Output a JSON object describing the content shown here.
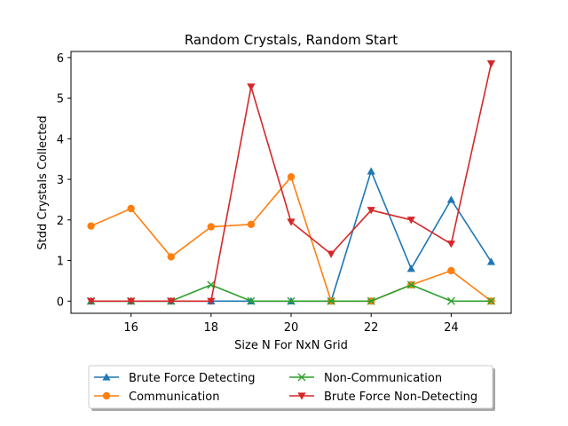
{
  "chart_data": {
    "type": "line",
    "title": "Random Crystals, Random Start",
    "xlabel": "Size N For NxN Grid",
    "ylabel": "Stdd Crystals Collected",
    "x": [
      15,
      16,
      17,
      18,
      19,
      20,
      21,
      22,
      23,
      24,
      25
    ],
    "xlim": [
      14.5,
      25.5
    ],
    "ylim": [
      -0.3,
      6.15
    ],
    "xticks": [
      16,
      18,
      20,
      22,
      24
    ],
    "yticks": [
      0,
      1,
      2,
      3,
      4,
      5,
      6
    ],
    "grid": false,
    "legend_placement": "below-center",
    "series": [
      {
        "name": "Brute Force Detecting",
        "color": "#1f77b4",
        "marker": "triangle-up",
        "values": [
          0,
          0,
          0,
          0,
          0,
          0,
          0,
          3.2,
          0.8,
          2.5,
          0.97
        ]
      },
      {
        "name": "Communication",
        "color": "#ff7f0e",
        "marker": "circle",
        "values": [
          1.85,
          2.28,
          1.09,
          1.83,
          1.89,
          3.06,
          0,
          0,
          0.4,
          0.75,
          0
        ]
      },
      {
        "name": "Non-Communication",
        "color": "#2ca02c",
        "marker": "x",
        "values": [
          0,
          0,
          0,
          0.4,
          0,
          0,
          0,
          0,
          0.4,
          0,
          0
        ]
      },
      {
        "name": "Brute Force Non-Detecting",
        "color": "#d62728",
        "marker": "triangle-down",
        "values": [
          0,
          0,
          0,
          0,
          5.28,
          1.95,
          1.16,
          2.24,
          2.0,
          1.41,
          5.85
        ]
      }
    ]
  }
}
